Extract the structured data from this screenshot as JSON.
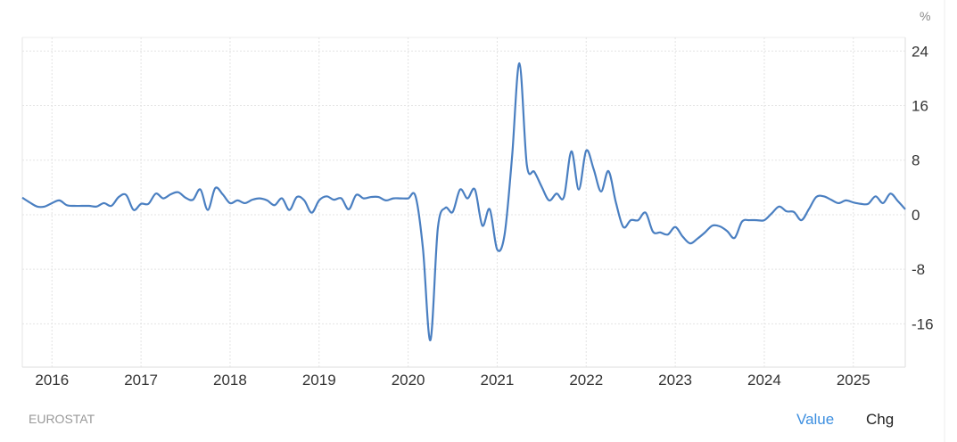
{
  "chart_data": {
    "type": "line",
    "title": "",
    "xlabel": "",
    "ylabel": "",
    "unit": "%",
    "source": "EUROSTAT",
    "y_axis_position": "right",
    "ylim": [
      -22.35,
      26
    ],
    "yticks": [
      24,
      16,
      8,
      0,
      -8,
      -16
    ],
    "xticks": [
      "2016",
      "2017",
      "2018",
      "2019",
      "2020",
      "2021",
      "2022",
      "2023",
      "2024",
      "2025"
    ],
    "xlim": [
      "2015-09",
      "2025-08"
    ],
    "grid": true,
    "line_color": "#4a7fc1",
    "series": [
      {
        "points": [
          [
            "2015-09",
            2.5
          ],
          [
            "2015-10",
            1.8
          ],
          [
            "2015-11",
            1.2
          ],
          [
            "2015-12",
            1.2
          ],
          [
            "2016-01",
            1.7
          ],
          [
            "2016-02",
            2.1
          ],
          [
            "2016-03",
            1.4
          ],
          [
            "2016-04",
            1.3
          ],
          [
            "2016-05",
            1.3
          ],
          [
            "2016-06",
            1.3
          ],
          [
            "2016-07",
            1.2
          ],
          [
            "2016-08",
            1.7
          ],
          [
            "2016-09",
            1.3
          ],
          [
            "2016-10",
            2.6
          ],
          [
            "2016-11",
            2.9
          ],
          [
            "2016-12",
            0.7
          ],
          [
            "2017-01",
            1.6
          ],
          [
            "2017-02",
            1.6
          ],
          [
            "2017-03",
            3.1
          ],
          [
            "2017-04",
            2.4
          ],
          [
            "2017-05",
            3.0
          ],
          [
            "2017-06",
            3.3
          ],
          [
            "2017-07",
            2.5
          ],
          [
            "2017-08",
            2.2
          ],
          [
            "2017-09",
            3.7
          ],
          [
            "2017-10",
            0.7
          ],
          [
            "2017-11",
            3.9
          ],
          [
            "2017-12",
            3.0
          ],
          [
            "2018-01",
            1.7
          ],
          [
            "2018-02",
            2.1
          ],
          [
            "2018-03",
            1.7
          ],
          [
            "2018-04",
            2.2
          ],
          [
            "2018-05",
            2.4
          ],
          [
            "2018-06",
            2.1
          ],
          [
            "2018-07",
            1.4
          ],
          [
            "2018-08",
            2.4
          ],
          [
            "2018-09",
            0.7
          ],
          [
            "2018-10",
            2.6
          ],
          [
            "2018-11",
            2.1
          ],
          [
            "2018-12",
            0.3
          ],
          [
            "2019-01",
            2.1
          ],
          [
            "2019-02",
            2.7
          ],
          [
            "2019-03",
            2.2
          ],
          [
            "2019-04",
            2.4
          ],
          [
            "2019-05",
            0.8
          ],
          [
            "2019-06",
            2.9
          ],
          [
            "2019-07",
            2.4
          ],
          [
            "2019-08",
            2.6
          ],
          [
            "2019-09",
            2.6
          ],
          [
            "2019-10",
            2.1
          ],
          [
            "2019-11",
            2.4
          ],
          [
            "2019-12",
            2.4
          ],
          [
            "2020-01",
            2.4
          ],
          [
            "2020-02",
            2.7
          ],
          [
            "2020-03",
            -5.0
          ],
          [
            "2020-04",
            -18.4
          ],
          [
            "2020-05",
            -2.0
          ],
          [
            "2020-06",
            1.0
          ],
          [
            "2020-07",
            0.4
          ],
          [
            "2020-08",
            3.7
          ],
          [
            "2020-09",
            2.4
          ],
          [
            "2020-10",
            3.7
          ],
          [
            "2020-11",
            -1.6
          ],
          [
            "2020-12",
            0.8
          ],
          [
            "2021-01",
            -5.1
          ],
          [
            "2021-02",
            -2.9
          ],
          [
            "2021-03",
            8.4
          ],
          [
            "2021-04",
            22.2
          ],
          [
            "2021-05",
            7.3
          ],
          [
            "2021-06",
            6.3
          ],
          [
            "2021-07",
            4.1
          ],
          [
            "2021-08",
            2.1
          ],
          [
            "2021-09",
            3.1
          ],
          [
            "2021-10",
            2.6
          ],
          [
            "2021-11",
            9.3
          ],
          [
            "2021-12",
            3.7
          ],
          [
            "2022-01",
            9.4
          ],
          [
            "2022-02",
            6.7
          ],
          [
            "2022-03",
            3.4
          ],
          [
            "2022-04",
            6.4
          ],
          [
            "2022-05",
            1.8
          ],
          [
            "2022-06",
            -1.8
          ],
          [
            "2022-07",
            -0.8
          ],
          [
            "2022-08",
            -0.8
          ],
          [
            "2022-09",
            0.3
          ],
          [
            "2022-10",
            -2.5
          ],
          [
            "2022-11",
            -2.6
          ],
          [
            "2022-12",
            -2.9
          ],
          [
            "2023-01",
            -1.8
          ],
          [
            "2023-02",
            -3.2
          ],
          [
            "2023-03",
            -4.2
          ],
          [
            "2023-04",
            -3.5
          ],
          [
            "2023-05",
            -2.6
          ],
          [
            "2023-06",
            -1.6
          ],
          [
            "2023-07",
            -1.7
          ],
          [
            "2023-08",
            -2.4
          ],
          [
            "2023-09",
            -3.4
          ],
          [
            "2023-10",
            -1.0
          ],
          [
            "2023-11",
            -0.8
          ],
          [
            "2023-12",
            -0.8
          ],
          [
            "2024-01",
            -0.8
          ],
          [
            "2024-02",
            0.2
          ],
          [
            "2024-03",
            1.2
          ],
          [
            "2024-04",
            0.5
          ],
          [
            "2024-05",
            0.4
          ],
          [
            "2024-06",
            -0.8
          ],
          [
            "2024-07",
            0.8
          ],
          [
            "2024-08",
            2.6
          ],
          [
            "2024-09",
            2.7
          ],
          [
            "2024-10",
            2.2
          ],
          [
            "2024-11",
            1.7
          ],
          [
            "2024-12",
            2.1
          ],
          [
            "2025-01",
            1.8
          ],
          [
            "2025-02",
            1.6
          ],
          [
            "2025-03",
            1.6
          ],
          [
            "2025-04",
            2.7
          ],
          [
            "2025-05",
            1.7
          ],
          [
            "2025-06",
            3.1
          ],
          [
            "2025-07",
            2.0
          ],
          [
            "2025-08",
            0.8
          ]
        ]
      }
    ]
  },
  "tabs": {
    "value": "Value",
    "chg": "Chg",
    "active": "value"
  }
}
